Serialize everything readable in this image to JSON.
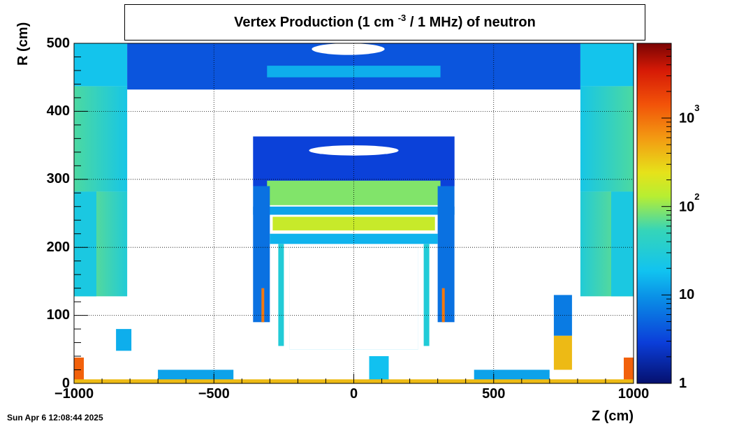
{
  "chart_data": {
    "type": "heatmap",
    "title": "Vertex Production (1 cm",
    "title_exponent": "-3",
    "title_rest": "/ 1 MHz) of   neutron",
    "xlabel": "Z (cm)",
    "ylabel": "R (cm)",
    "xlim": [
      -1000,
      1000
    ],
    "ylim": [
      0,
      500
    ],
    "grid": true,
    "x_ticks": [
      "−1000",
      "−500",
      "0",
      "500",
      "1000"
    ],
    "x_tick_values": [
      -1000,
      -500,
      0,
      500,
      1000
    ],
    "y_ticks": [
      "0",
      "100",
      "200",
      "300",
      "400",
      "500"
    ],
    "y_tick_values": [
      0,
      100,
      200,
      300,
      400,
      500
    ],
    "colorbar": {
      "scale": "log",
      "range": [
        1,
        7000
      ],
      "ticks": [
        {
          "value": 1,
          "base": "1",
          "exp": ""
        },
        {
          "value": 10,
          "base": "10",
          "exp": ""
        },
        {
          "value": 100,
          "base": "10",
          "exp": "2"
        },
        {
          "value": 1000,
          "base": "10",
          "exp": "3"
        }
      ]
    },
    "regions": [
      {
        "z": [
          -1000,
          -810
        ],
        "r": [
          128,
          282
        ],
        "level": 120,
        "grad": "vert"
      },
      {
        "z": [
          -1000,
          -810
        ],
        "r": [
          282,
          437
        ],
        "level": 90,
        "grad": "vert"
      },
      {
        "z": [
          -1000,
          -810
        ],
        "r": [
          437,
          500
        ],
        "level": 20
      },
      {
        "z": [
          810,
          1000
        ],
        "r": [
          128,
          282
        ],
        "level": 120,
        "grad": "vert"
      },
      {
        "z": [
          810,
          1000
        ],
        "r": [
          282,
          437
        ],
        "level": 90,
        "grad": "vert"
      },
      {
        "z": [
          810,
          1000
        ],
        "r": [
          437,
          500
        ],
        "level": 20
      },
      {
        "z": [
          -1000,
          -920
        ],
        "r": [
          128,
          282
        ],
        "level": 25
      },
      {
        "z": [
          920,
          1000
        ],
        "r": [
          128,
          282
        ],
        "level": 25
      },
      {
        "z": [
          -810,
          810
        ],
        "r": [
          432,
          500
        ],
        "level": 4
      },
      {
        "z": [
          -310,
          310
        ],
        "r": [
          450,
          467
        ],
        "level": 14
      },
      {
        "z": [
          -360,
          360
        ],
        "r": [
          290,
          363
        ],
        "level": 3
      },
      {
        "z": [
          -310,
          310
        ],
        "r": [
          262,
          298
        ],
        "level": 90
      },
      {
        "z": [
          -360,
          360
        ],
        "r": [
          248,
          260
        ],
        "level": 12
      },
      {
        "z": [
          -290,
          290
        ],
        "r": [
          225,
          245
        ],
        "level": 160
      },
      {
        "z": [
          -360,
          -300
        ],
        "r": [
          90,
          290
        ],
        "level": 6
      },
      {
        "z": [
          300,
          360
        ],
        "r": [
          90,
          290
        ],
        "level": 6
      },
      {
        "z": [
          -300,
          300
        ],
        "r": [
          205,
          220
        ],
        "level": 15
      },
      {
        "z": [
          -270,
          -250
        ],
        "r": [
          55,
          205
        ],
        "level": 30
      },
      {
        "z": [
          250,
          270
        ],
        "r": [
          55,
          205
        ],
        "level": 30
      },
      {
        "z": [
          -230,
          230
        ],
        "r": [
          50,
          200
        ],
        "level": 18
      },
      {
        "z": [
          -330,
          -320
        ],
        "r": [
          90,
          140
        ],
        "level": 900
      },
      {
        "z": [
          315,
          325
        ],
        "r": [
          90,
          140
        ],
        "level": 900
      },
      {
        "z": [
          -230,
          230
        ],
        "r": [
          50,
          200
        ],
        "level": 0
      },
      {
        "z": [
          -215,
          215
        ],
        "r": [
          55,
          195
        ],
        "level": 0
      },
      {
        "z": [
          -850,
          -795
        ],
        "r": [
          48,
          80
        ],
        "level": 14
      },
      {
        "z": [
          -700,
          -430
        ],
        "r": [
          5,
          20
        ],
        "level": 12
      },
      {
        "z": [
          430,
          700
        ],
        "r": [
          5,
          20
        ],
        "level": 12
      },
      {
        "z": [
          55,
          125
        ],
        "r": [
          5,
          40
        ],
        "level": 18
      },
      {
        "z": [
          -1000,
          -965
        ],
        "r": [
          5,
          38
        ],
        "level": 1200
      },
      {
        "z": [
          965,
          1000
        ],
        "r": [
          5,
          38
        ],
        "level": 1200
      },
      {
        "z": [
          715,
          780
        ],
        "r": [
          70,
          130
        ],
        "level": 7
      },
      {
        "z": [
          715,
          780
        ],
        "r": [
          20,
          70
        ],
        "level": 400
      },
      {
        "z": [
          -1000,
          1000
        ],
        "r": [
          0,
          6
        ],
        "level": 400
      }
    ],
    "holes": [
      {
        "z": [
          -160,
          160
        ],
        "r": [
          335,
          350
        ]
      },
      {
        "z": [
          -150,
          110
        ],
        "r": [
          483,
          500
        ]
      }
    ]
  },
  "footer": {
    "timestamp": "Sun Apr  6 12:08:44 2025"
  }
}
